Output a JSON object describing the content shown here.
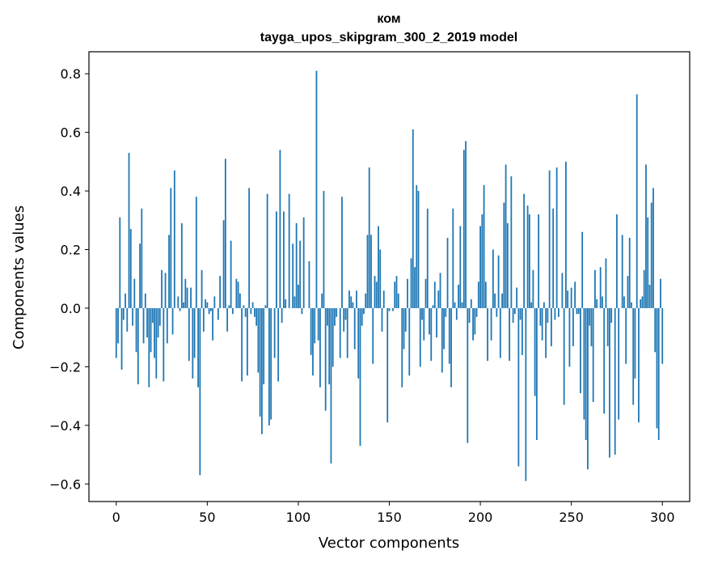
{
  "chart_data": {
    "type": "bar",
    "title": "ком",
    "subtitle": "tayga_upos_skipgram_300_2_2019 model",
    "xlabel": "Vector components",
    "ylabel": "Components values",
    "xlim": [
      -15,
      315
    ],
    "ylim": [
      -0.66,
      0.875
    ],
    "xticks": [
      0,
      50,
      100,
      150,
      200,
      250,
      300
    ],
    "yticks": [
      -0.6,
      -0.4,
      -0.2,
      0.0,
      0.2,
      0.4,
      0.6,
      0.8
    ],
    "ytick_labels": [
      "−0.6",
      "−0.4",
      "−0.2",
      "0.0",
      "0.2",
      "0.4",
      "0.6",
      "0.8"
    ],
    "xtick_labels": [
      "0",
      "50",
      "100",
      "150",
      "200",
      "250",
      "300"
    ],
    "bar_color": "#1f77b4",
    "grid": false,
    "x_start": 0,
    "values": [
      -0.17,
      -0.12,
      0.31,
      -0.21,
      -0.04,
      0.05,
      -0.08,
      0.53,
      0.27,
      -0.06,
      0.1,
      -0.15,
      -0.26,
      0.22,
      0.34,
      -0.12,
      0.05,
      -0.1,
      -0.27,
      -0.15,
      -0.05,
      -0.17,
      -0.24,
      -0.1,
      -0.06,
      0.13,
      -0.25,
      0.12,
      -0.12,
      0.25,
      0.41,
      -0.09,
      0.47,
      0.0,
      0.04,
      -0.01,
      0.29,
      0.02,
      0.1,
      0.07,
      -0.18,
      0.07,
      -0.24,
      -0.17,
      0.38,
      -0.27,
      -0.57,
      0.13,
      -0.08,
      0.03,
      0.02,
      -0.02,
      -0.01,
      -0.11,
      0.04,
      0.0,
      -0.04,
      0.11,
      0.0,
      0.3,
      0.51,
      -0.08,
      0.01,
      0.23,
      -0.02,
      0.0,
      0.1,
      0.09,
      0.05,
      -0.25,
      0.01,
      -0.03,
      -0.23,
      0.41,
      -0.02,
      0.02,
      -0.03,
      -0.06,
      -0.22,
      -0.37,
      -0.43,
      -0.26,
      0.01,
      0.39,
      -0.4,
      -0.38,
      0.0,
      -0.17,
      0.33,
      -0.25,
      0.54,
      -0.05,
      0.33,
      0.03,
      0.0,
      0.39,
      0.0,
      0.22,
      0.04,
      0.29,
      0.08,
      0.23,
      -0.02,
      0.31,
      0.0,
      0.0,
      0.16,
      -0.16,
      -0.23,
      -0.12,
      0.81,
      -0.11,
      -0.27,
      0.05,
      0.4,
      -0.35,
      -0.06,
      -0.26,
      -0.53,
      -0.2,
      -0.06,
      -0.03,
      0.0,
      -0.17,
      0.38,
      -0.08,
      -0.04,
      -0.17,
      0.06,
      0.04,
      0.02,
      -0.14,
      0.06,
      -0.24,
      -0.47,
      -0.06,
      -0.02,
      0.05,
      0.25,
      0.48,
      0.25,
      -0.19,
      0.11,
      0.09,
      0.28,
      0.2,
      -0.08,
      0.06,
      0.0,
      -0.39,
      -0.01,
      0.0,
      -0.01,
      0.09,
      0.11,
      0.05,
      0.0,
      -0.27,
      -0.14,
      -0.08,
      0.1,
      -0.23,
      0.17,
      0.61,
      0.14,
      0.42,
      0.4,
      -0.2,
      -0.04,
      -0.11,
      0.1,
      0.34,
      -0.09,
      -0.18,
      0.01,
      0.09,
      -0.1,
      0.06,
      0.12,
      -0.22,
      -0.14,
      -0.03,
      0.24,
      -0.19,
      -0.27,
      0.34,
      0.02,
      -0.04,
      0.08,
      0.28,
      0.02,
      0.54,
      0.57,
      -0.46,
      -0.05,
      0.03,
      -0.11,
      -0.09,
      -0.03,
      0.09,
      0.28,
      0.32,
      0.42,
      0.09,
      -0.18,
      0.0,
      -0.11,
      0.2,
      0.05,
      -0.03,
      0.18,
      -0.17,
      0.05,
      0.36,
      0.49,
      0.29,
      -0.18,
      0.45,
      -0.05,
      -0.02,
      0.07,
      -0.54,
      -0.04,
      -0.16,
      0.39,
      -0.59,
      0.35,
      0.32,
      0.02,
      0.13,
      -0.3,
      -0.45,
      0.32,
      -0.06,
      -0.11,
      0.02,
      -0.17,
      -0.05,
      0.47,
      -0.13,
      0.34,
      -0.04,
      0.48,
      -0.03,
      0.0,
      0.12,
      -0.33,
      0.5,
      0.06,
      -0.2,
      0.07,
      -0.13,
      0.09,
      -0.02,
      -0.02,
      -0.29,
      0.26,
      -0.38,
      -0.45,
      -0.55,
      -0.06,
      -0.13,
      -0.32,
      0.13,
      0.03,
      0.0,
      0.14,
      0.04,
      -0.36,
      0.17,
      -0.13,
      -0.51,
      -0.05,
      0.0,
      -0.5,
      0.32,
      -0.38,
      0.0,
      0.25,
      0.04,
      -0.19,
      0.11,
      0.24,
      0.02,
      -0.33,
      -0.24,
      0.73,
      -0.39,
      0.03,
      0.04,
      0.13,
      0.49,
      0.31,
      0.08,
      0.36,
      0.41,
      -0.15,
      -0.41,
      -0.45,
      0.1,
      -0.19
    ]
  }
}
